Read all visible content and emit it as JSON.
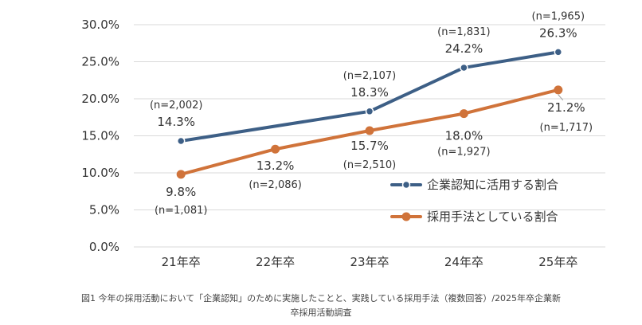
{
  "chart_data": {
    "type": "line",
    "categories": [
      "21年卒",
      "22年卒",
      "23年卒",
      "24年卒",
      "25年卒"
    ],
    "ylim": [
      0,
      30
    ],
    "yticks": [
      "0.0%",
      "5.0%",
      "10.0%",
      "15.0%",
      "20.0%",
      "25.0%",
      "30.0%"
    ],
    "grid": true,
    "legend_position": "right",
    "series": [
      {
        "name": "企業認知に活用する割合",
        "color": "#3d5f86",
        "values": [
          14.3,
          null,
          18.3,
          24.2,
          26.3
        ],
        "value_labels": [
          "14.3%",
          "",
          "18.3%",
          "24.2%",
          "26.3%"
        ],
        "n_labels": [
          "(n=2,002)",
          "",
          "(n=2,107)",
          "(n=1,831)",
          "(n=1,965)"
        ]
      },
      {
        "name": "採用手法としている割合",
        "color": "#d0733a",
        "values": [
          9.8,
          13.2,
          15.7,
          18.0,
          21.2
        ],
        "value_labels": [
          "9.8%",
          "13.2%",
          "15.7%",
          "18.0%",
          "21.2%"
        ],
        "n_labels": [
          "(n=1,081)",
          "(n=2,086)",
          "(n=2,510)",
          "(n=1,927)",
          "(n=1,717)"
        ]
      }
    ]
  },
  "caption": {
    "line1": "図1 今年の採用活動において「企業認知」のために実施したことと、実践している採用手法（複数回答）/2025年卒企業新",
    "line2": "卒採用活動調査"
  }
}
